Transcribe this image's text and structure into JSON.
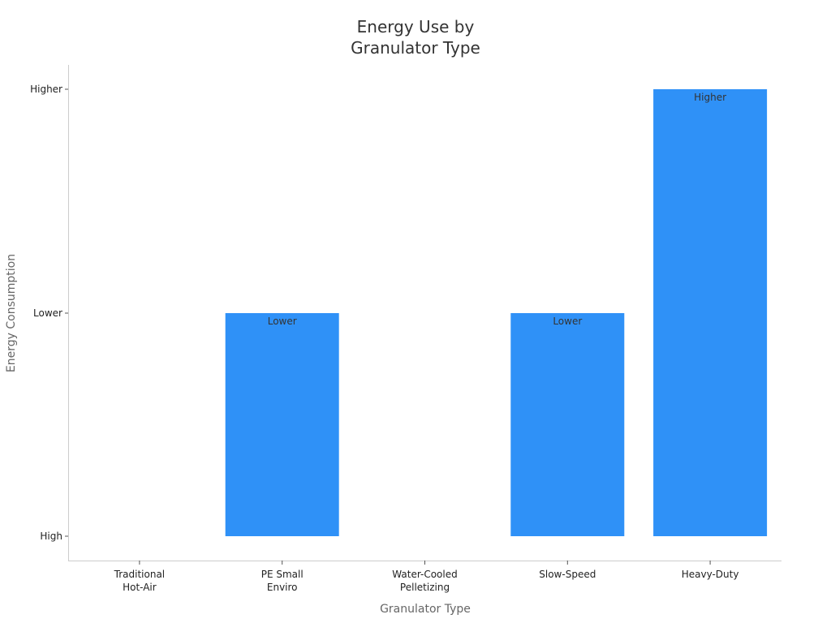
{
  "chart_data": {
    "type": "bar",
    "title_lines": [
      "Energy Use by",
      "Granulator Type"
    ],
    "xlabel": "Granulator Type",
    "ylabel": "Energy Consumption",
    "categories": [
      [
        "Traditional",
        "Hot-Air"
      ],
      [
        "PE Small",
        "Enviro"
      ],
      [
        "Water-Cooled",
        "Pelletizing"
      ],
      [
        "Slow-Speed"
      ],
      [
        "Heavy-Duty"
      ]
    ],
    "y_levels": [
      "High",
      "Lower",
      "Higher"
    ],
    "values": [
      null,
      "Lower",
      null,
      "Lower",
      "Higher"
    ],
    "data_labels": [
      "",
      "Lower",
      "",
      "Lower",
      "Higher"
    ],
    "bar_color": "#2f91f7",
    "axis_color": "#cccccc",
    "grid": false,
    "legend": "none"
  }
}
